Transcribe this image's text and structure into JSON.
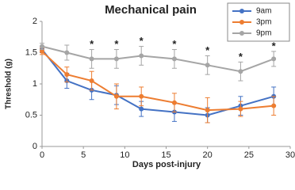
{
  "chart_data": {
    "type": "line",
    "title": "Mechanical pain",
    "x_label": "Days post-injury",
    "y_label": "Threshold (g)",
    "x": [
      0,
      3,
      6,
      9,
      12,
      16,
      20,
      24,
      28
    ],
    "series": [
      {
        "name": "9am",
        "color": "#4472c4",
        "values": [
          1.55,
          1.05,
          0.9,
          0.82,
          0.6,
          0.55,
          0.5,
          0.65,
          0.8
        ],
        "errors": [
          0.05,
          0.12,
          0.15,
          0.15,
          0.12,
          0.15,
          0.12,
          0.15,
          0.15
        ]
      },
      {
        "name": "3pm",
        "color": "#ed7d31",
        "values": [
          1.52,
          1.15,
          1.05,
          0.8,
          0.8,
          0.7,
          0.58,
          0.6,
          0.65
        ],
        "errors": [
          0.05,
          0.12,
          0.15,
          0.2,
          0.15,
          0.15,
          0.2,
          0.12,
          0.15
        ]
      },
      {
        "name": "9pm",
        "color": "#a5a5a5",
        "values": [
          1.6,
          1.5,
          1.4,
          1.4,
          1.45,
          1.4,
          1.3,
          1.2,
          1.4
        ],
        "errors": [
          0.05,
          0.12,
          0.15,
          0.15,
          0.15,
          0.15,
          0.15,
          0.15,
          0.12
        ]
      }
    ],
    "annotations": [
      {
        "x": 6,
        "text": "*"
      },
      {
        "x": 9,
        "text": "*"
      },
      {
        "x": 12,
        "text": "*"
      },
      {
        "x": 16,
        "text": "*"
      },
      {
        "x": 20,
        "text": "*"
      },
      {
        "x": 24,
        "text": "*"
      },
      {
        "x": 28,
        "text": "*"
      }
    ],
    "xlim": [
      0,
      30
    ],
    "xticks": [
      0,
      5,
      10,
      15,
      20,
      25,
      30
    ],
    "ylim": [
      0,
      2
    ],
    "yticks": [
      0,
      0.5,
      1,
      1.5,
      2
    ],
    "grid": false,
    "legend": "upper right"
  }
}
